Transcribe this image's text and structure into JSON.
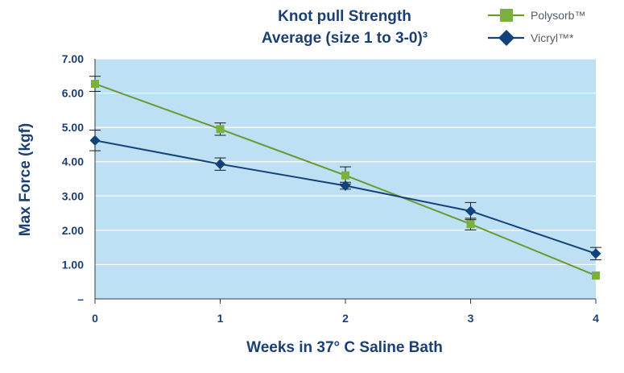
{
  "chart_data": {
    "type": "line",
    "title_lines": [
      "Knot pull Strength",
      "Average (size 1 to 3-0)³"
    ],
    "xlabel": "Weeks in 37° C Saline Bath",
    "ylabel": "Max Force (kgf)",
    "x": [
      0,
      1,
      2,
      3,
      4
    ],
    "x_tick_labels": [
      "0",
      "1",
      "2",
      "3",
      "4"
    ],
    "y_tick_labels": [
      "–",
      "1.00",
      "2.00",
      "3.00",
      "4.00",
      "5.00",
      "6.00",
      "7.00"
    ],
    "y_tick_values": [
      0,
      1,
      2,
      3,
      4,
      5,
      6,
      7
    ],
    "ylim": [
      0,
      7
    ],
    "xlim": [
      0,
      4
    ],
    "grid": true,
    "plot_background": "#bde0f4",
    "legend_position": "top-right",
    "series": [
      {
        "name": "Polysorb™",
        "color": "#6a9a2f",
        "marker_color": "#7ab13c",
        "marker": "square",
        "values": [
          6.27,
          4.95,
          3.6,
          2.18,
          0.68
        ],
        "error": [
          0.22,
          0.18,
          0.25,
          0.17,
          null
        ]
      },
      {
        "name": "Vicryl™*",
        "color": "#13427a",
        "marker_color": "#13427a",
        "marker": "diamond",
        "values": [
          4.62,
          3.93,
          3.3,
          2.56,
          1.32
        ],
        "error": [
          0.3,
          0.18,
          0.1,
          0.25,
          0.18
        ]
      }
    ]
  }
}
